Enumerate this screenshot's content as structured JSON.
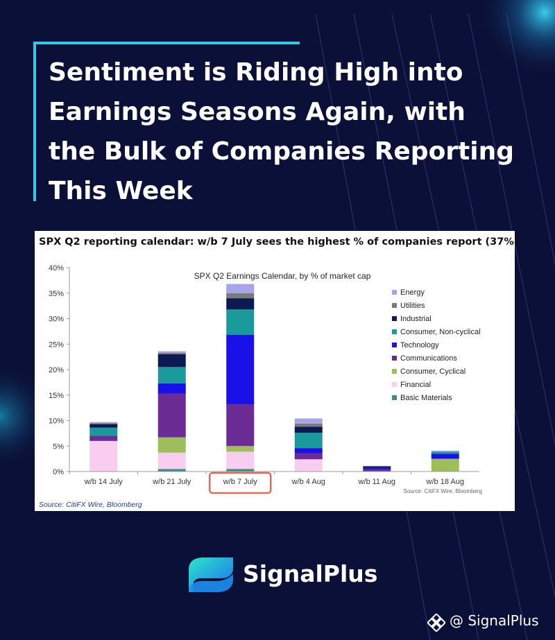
{
  "headline": "Sentiment is Riding High into Earnings Seasons Again, with the Bulk of Companies Reporting This Week",
  "card": {
    "caption": "SPX Q2 reporting calendar: w/b 7 July sees the highest % of companies report (37%)",
    "source": "Source: CitiFX Wire, Bloomberg"
  },
  "brand": {
    "name": "SignalPlus",
    "handle": "@ SignalPlus"
  },
  "colors": {
    "background": "#0b1038",
    "accent": "#35c8e0",
    "highlight_box": "#e06a5a"
  },
  "chart_data": {
    "type": "bar",
    "stacked": true,
    "title": "SPX Q2 Earnings Calendar, by % of market cap",
    "source_note": "Source: CitiFX Wire, Bloomberg",
    "categories": [
      "w/b 14 July",
      "w/b 21 July",
      "w/b 7 July",
      "w/b 4 Aug",
      "w/b 11 Aug",
      "w/b 18 Aug"
    ],
    "highlighted_category": "w/b 7 July",
    "ylim": [
      0,
      40
    ],
    "yticks": [
      0,
      5,
      10,
      15,
      20,
      25,
      30,
      35,
      40
    ],
    "ytick_labels": [
      "0%",
      "5%",
      "10%",
      "15%",
      "20%",
      "25%",
      "30%",
      "35%",
      "40%"
    ],
    "legend_position": "right",
    "grid": false,
    "series": [
      {
        "name": "Basic Materials",
        "color": "#3c8f7c",
        "values": [
          0.0,
          0.5,
          0.5,
          0.0,
          0.0,
          0.0
        ]
      },
      {
        "name": "Financial",
        "color": "#f8cdf0",
        "values": [
          6.0,
          3.2,
          3.4,
          2.4,
          0.0,
          0.0
        ]
      },
      {
        "name": "Consumer, Cyclical",
        "color": "#9cbf5c",
        "values": [
          0.0,
          3.0,
          1.1,
          0.0,
          0.0,
          2.5
        ]
      },
      {
        "name": "Communications",
        "color": "#6c2c96",
        "values": [
          1.0,
          8.6,
          8.2,
          1.2,
          0.4,
          0.0
        ]
      },
      {
        "name": "Technology",
        "color": "#1a10e8",
        "values": [
          0.0,
          2.0,
          13.6,
          1.0,
          0.3,
          1.0
        ]
      },
      {
        "name": "Consumer, Non-cyclical",
        "color": "#1a9a9a",
        "values": [
          1.6,
          3.2,
          5.0,
          3.0,
          0.0,
          0.4
        ]
      },
      {
        "name": "Industrial",
        "color": "#0c1a52",
        "values": [
          0.7,
          2.5,
          2.2,
          1.2,
          0.3,
          0.0
        ]
      },
      {
        "name": "Utilities",
        "color": "#7a7a7a",
        "values": [
          0.2,
          0.3,
          1.0,
          0.6,
          0.1,
          0.0
        ]
      },
      {
        "name": "Energy",
        "color": "#a8a4ea",
        "values": [
          0.2,
          0.3,
          1.8,
          1.0,
          0.0,
          0.2
        ]
      }
    ]
  }
}
